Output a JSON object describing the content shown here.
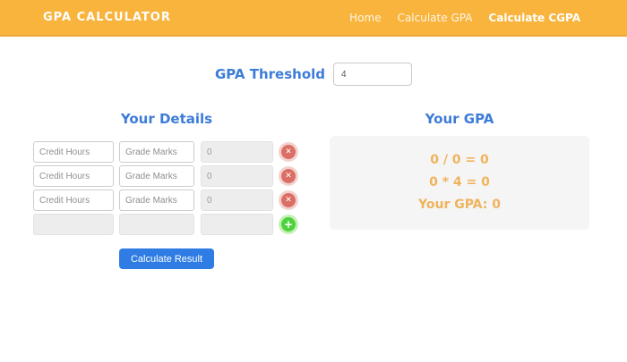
{
  "header": {
    "brand": "GPA CALCULATOR",
    "nav": [
      {
        "label": "Home",
        "active": false
      },
      {
        "label": "Calculate GPA",
        "active": false
      },
      {
        "label": "Calculate CGPA",
        "active": true
      }
    ]
  },
  "threshold": {
    "label": "GPA Threshold",
    "value": "4"
  },
  "details": {
    "heading": "Your Details",
    "rows": [
      {
        "credit_placeholder": "Credit Hours",
        "grade_placeholder": "Grade Marks",
        "result_value": "0"
      },
      {
        "credit_placeholder": "Credit Hours",
        "grade_placeholder": "Grade Marks",
        "result_value": "0"
      },
      {
        "credit_placeholder": "Credit Hours",
        "grade_placeholder": "Grade Marks",
        "result_value": "0"
      }
    ],
    "calculate_button": "Calculate Result"
  },
  "result": {
    "heading": "Your GPA",
    "lines": {
      "division": "0 / 0 = 0",
      "multiplication": "0 * 4 = 0",
      "final": "Your GPA: 0"
    }
  },
  "icons": {
    "remove": "✕",
    "add": "+"
  },
  "colors": {
    "header_bg": "#f8b43c",
    "heading_blue": "#3d7cd9",
    "result_orange": "#f0b35c",
    "primary_button": "#2e7ce4",
    "remove_red": "#db6e65",
    "add_green": "#4ed13d"
  }
}
